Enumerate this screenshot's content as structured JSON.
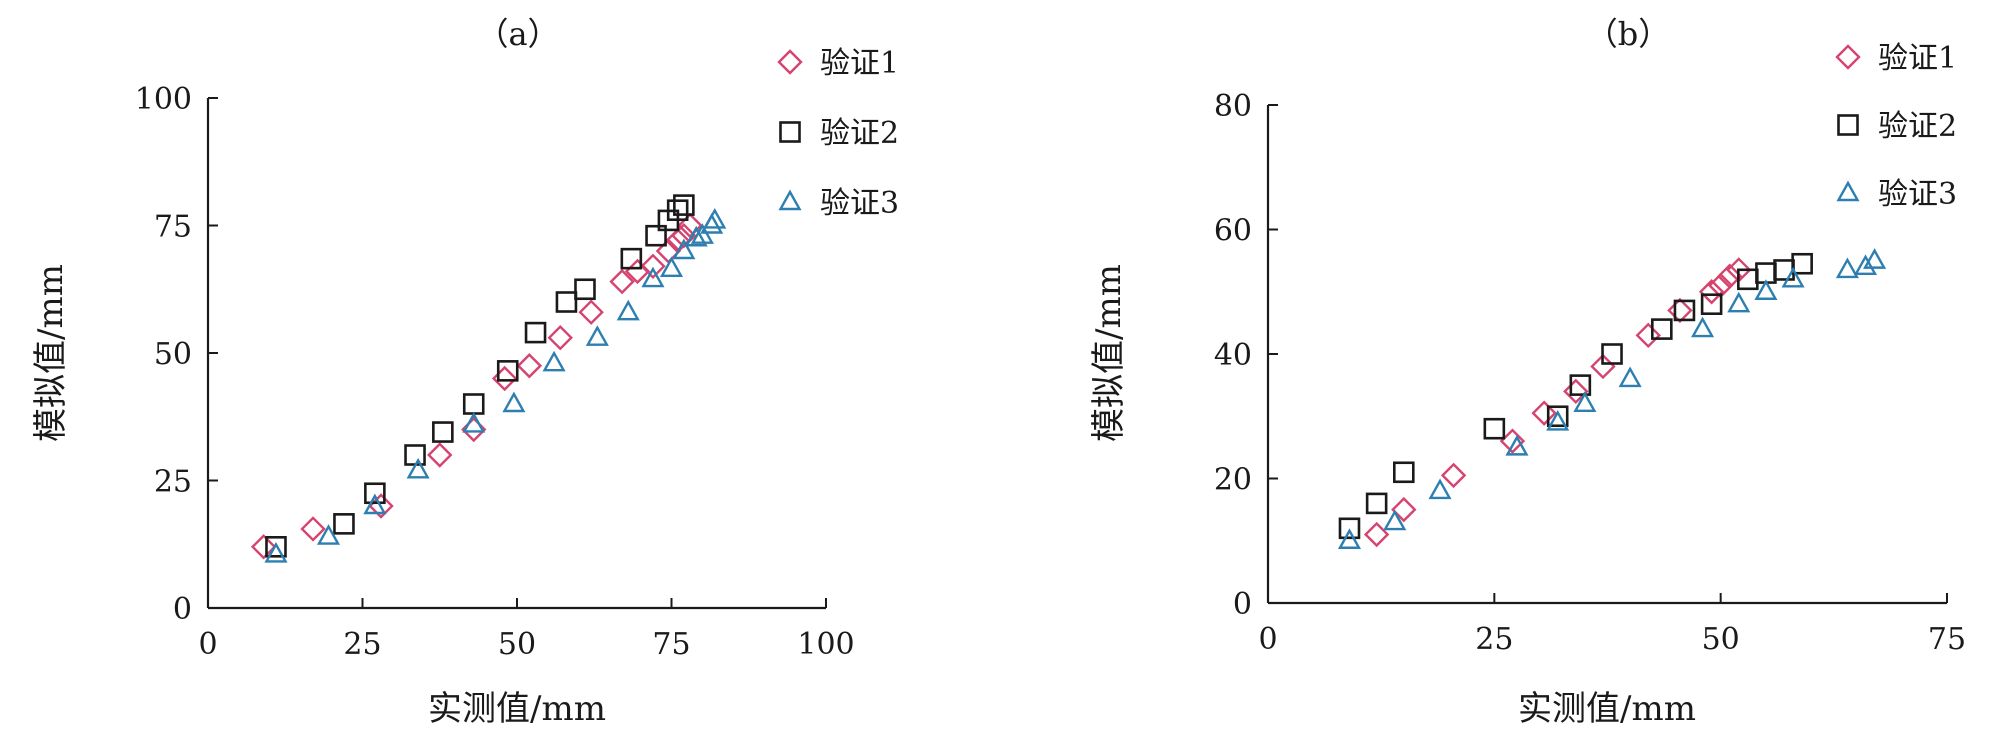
{
  "colors": {
    "series1": "#d6436e",
    "series2": "#1a1a1a",
    "series3": "#2c7fb0",
    "axis": "#1a1a1a"
  },
  "chart_data": [
    {
      "type": "scatter",
      "panel_label": "（a）",
      "xlabel": "实测值/mm",
      "ylabel": "模拟值/mm",
      "xlim": [
        0,
        100
      ],
      "ylim": [
        0,
        100
      ],
      "xticks": [
        0,
        25,
        50,
        75,
        100
      ],
      "yticks": [
        0,
        25,
        50,
        75,
        100
      ],
      "grid": false,
      "legend": "top-right",
      "series": [
        {
          "name": "验证1",
          "marker": "diamond",
          "points": [
            [
              9,
              12
            ],
            [
              17,
              15.5
            ],
            [
              28,
              20
            ],
            [
              37.5,
              30
            ],
            [
              43,
              35
            ],
            [
              48,
              45
            ],
            [
              52,
              47.5
            ],
            [
              57,
              53
            ],
            [
              62,
              58
            ],
            [
              67,
              64
            ],
            [
              69.5,
              66
            ],
            [
              72,
              67
            ],
            [
              74.5,
              70
            ],
            [
              76,
              72
            ],
            [
              77,
              73
            ],
            [
              78,
              75
            ]
          ]
        },
        {
          "name": "验证2",
          "marker": "square",
          "points": [
            [
              11,
              12
            ],
            [
              22,
              16.5
            ],
            [
              27,
              22.5
            ],
            [
              33.5,
              30
            ],
            [
              38,
              34.5
            ],
            [
              43,
              40
            ],
            [
              48.5,
              46.5
            ],
            [
              53,
              54
            ],
            [
              58,
              60
            ],
            [
              61,
              62.5
            ],
            [
              68.5,
              68.5
            ],
            [
              72.5,
              73
            ],
            [
              74.5,
              76
            ],
            [
              76,
              78
            ],
            [
              77,
              79
            ]
          ]
        },
        {
          "name": "验证3",
          "marker": "triangle",
          "points": [
            [
              11,
              10.5
            ],
            [
              19.5,
              14
            ],
            [
              27,
              20
            ],
            [
              34,
              27
            ],
            [
              43,
              36
            ],
            [
              49.5,
              40
            ],
            [
              56,
              48
            ],
            [
              63,
              53
            ],
            [
              68,
              58
            ],
            [
              72,
              64.5
            ],
            [
              75,
              66.5
            ],
            [
              77,
              70
            ],
            [
              79,
              72.5
            ],
            [
              80,
              73
            ],
            [
              81.5,
              75
            ],
            [
              82,
              76
            ]
          ]
        }
      ]
    },
    {
      "type": "scatter",
      "panel_label": "（b）",
      "xlabel": "实测值/mm",
      "ylabel": "模拟值/mm",
      "xlim": [
        0,
        75
      ],
      "ylim": [
        0,
        80
      ],
      "xticks": [
        0,
        25,
        50,
        75
      ],
      "yticks": [
        0,
        20,
        40,
        60,
        80
      ],
      "grid": false,
      "legend": "top-right",
      "series": [
        {
          "name": "验证1",
          "marker": "diamond",
          "points": [
            [
              12,
              11
            ],
            [
              15,
              15
            ],
            [
              20.5,
              20.5
            ],
            [
              27,
              26
            ],
            [
              30.5,
              30.5
            ],
            [
              34,
              34
            ],
            [
              37,
              38
            ],
            [
              42,
              43
            ],
            [
              45.5,
              47
            ],
            [
              49,
              50
            ],
            [
              50,
              51
            ],
            [
              51,
              52.5
            ],
            [
              52,
              53.5
            ]
          ]
        },
        {
          "name": "验证2",
          "marker": "square",
          "points": [
            [
              9,
              12
            ],
            [
              12,
              16
            ],
            [
              15,
              21
            ],
            [
              25,
              28
            ],
            [
              32,
              30
            ],
            [
              34.5,
              35
            ],
            [
              38,
              40
            ],
            [
              43.5,
              44
            ],
            [
              46,
              47
            ],
            [
              49,
              48
            ],
            [
              53,
              52
            ],
            [
              55,
              53
            ],
            [
              57,
              53.5
            ],
            [
              59,
              54.5
            ]
          ]
        },
        {
          "name": "验证3",
          "marker": "triangle",
          "points": [
            [
              9,
              10
            ],
            [
              14,
              13
            ],
            [
              19,
              18
            ],
            [
              27.5,
              25
            ],
            [
              32,
              29
            ],
            [
              35,
              32
            ],
            [
              40,
              36
            ],
            [
              48,
              44
            ],
            [
              52,
              48
            ],
            [
              55,
              50
            ],
            [
              58,
              52
            ],
            [
              64,
              53.5
            ],
            [
              66,
              54
            ],
            [
              67,
              55
            ]
          ]
        }
      ]
    }
  ]
}
